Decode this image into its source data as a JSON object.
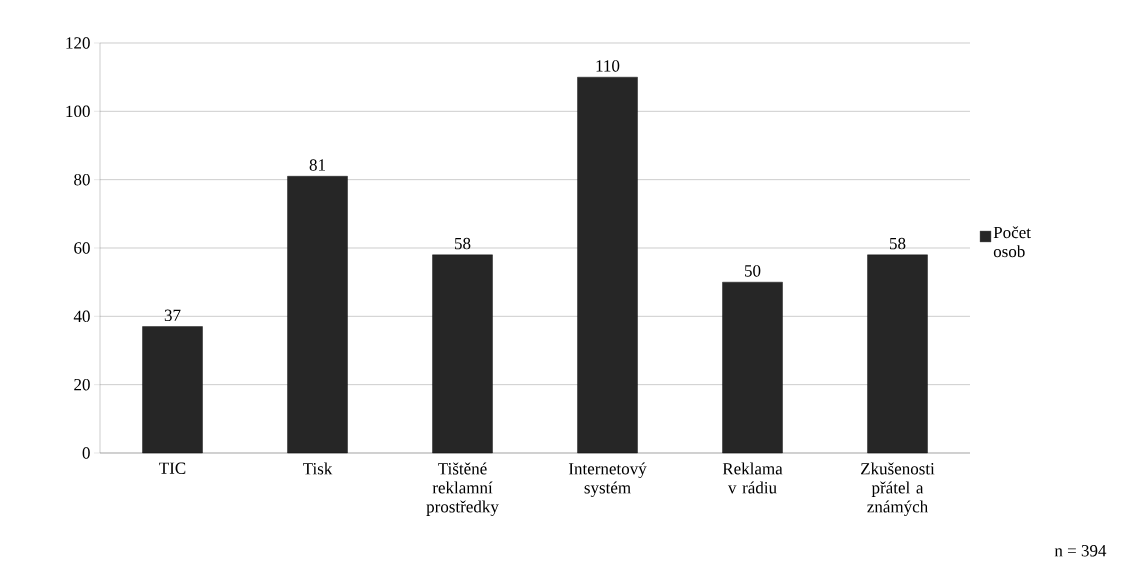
{
  "chart_data": {
    "type": "bar",
    "categories": [
      "TIC",
      "Tisk",
      "Tištěné reklamní prostředky",
      "Internetový systém",
      "Reklama v rádiu",
      "Zkušenosti přátel a známých"
    ],
    "series": [
      {
        "name": "Počet osob",
        "color": "#262626",
        "values": [
          37,
          81,
          58,
          110,
          50,
          58
        ]
      }
    ],
    "ylim": [
      0,
      120
    ],
    "yticks": [
      0,
      20,
      40,
      60,
      80,
      100,
      120
    ],
    "grid": "y",
    "legend": "right",
    "data_labels": true,
    "annotations": [
      "n = 394"
    ]
  }
}
